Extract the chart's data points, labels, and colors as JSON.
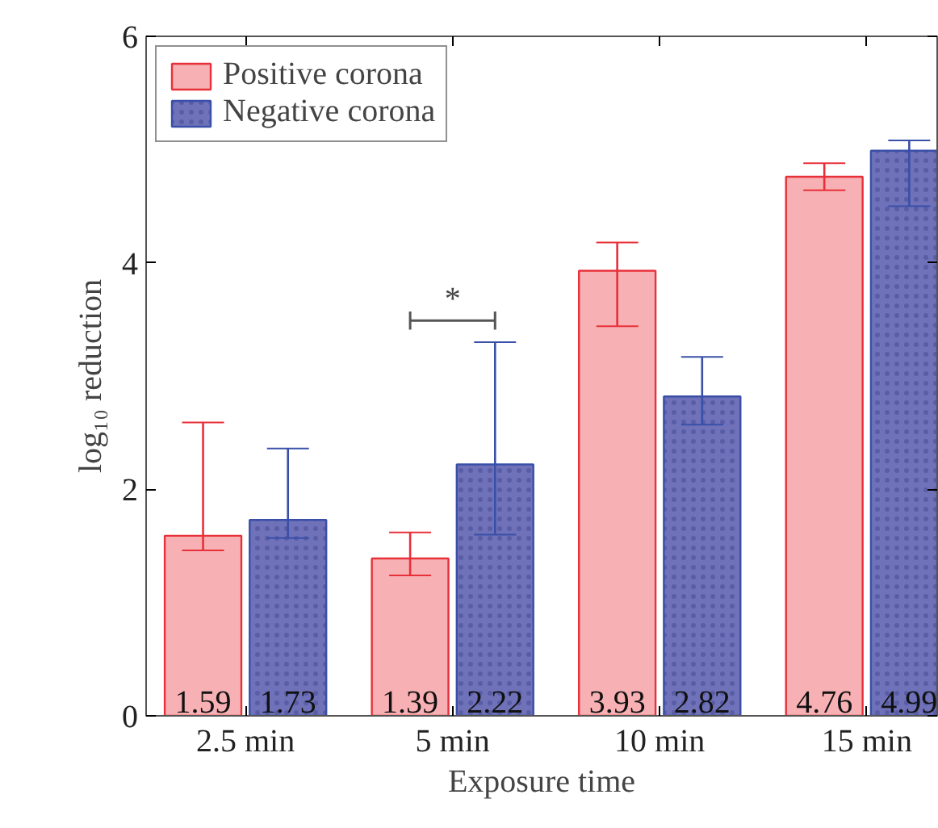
{
  "chart_data": {
    "type": "bar",
    "categories": [
      "2.5 min",
      "5 min",
      "10 min",
      "15 min"
    ],
    "xlabel": "Exposure time",
    "ylabel": "log₁₀ reduction",
    "ylim": [
      0,
      6
    ],
    "yticks": [
      0,
      2,
      4,
      6
    ],
    "series": [
      {
        "name": "Positive corona",
        "color": "#f7b0b3",
        "values": [
          1.59,
          1.39,
          3.93,
          4.76
        ],
        "errors": [
          [
            1.46,
            2.59
          ],
          [
            1.24,
            1.62
          ],
          [
            3.44,
            4.18
          ],
          [
            4.64,
            4.88
          ]
        ]
      },
      {
        "name": "Negative corona",
        "color": "#6f72b8",
        "values": [
          1.73,
          2.22,
          2.82,
          4.99
        ],
        "errors": [
          [
            1.57,
            2.36
          ],
          [
            1.6,
            3.3
          ],
          [
            2.57,
            3.17
          ],
          [
            4.5,
            5.08
          ]
        ]
      }
    ],
    "data_labels": true,
    "legend": "top left",
    "grid": false,
    "annotations": [
      "*"
    ]
  }
}
